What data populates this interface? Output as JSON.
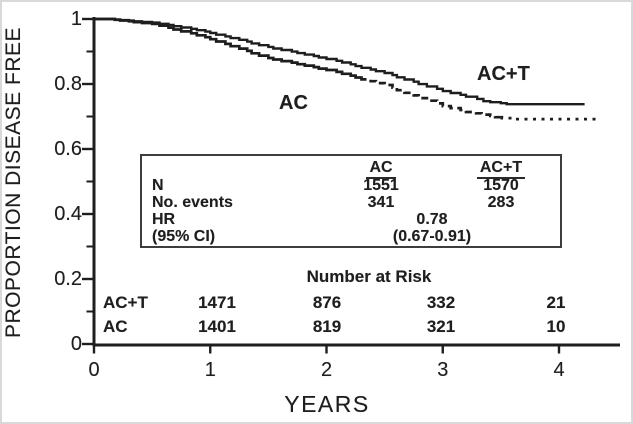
{
  "figure": {
    "background": "#ffffff",
    "ink": "#1e1e1e",
    "border_color": "#d9d9d9",
    "box_border_color": "#3d3d3d"
  },
  "chart_data": {
    "type": "line",
    "subtype": "kaplan-meier-step",
    "title": "",
    "xlabel": "YEARS",
    "ylabel": "PROPORTION DISEASE FREE",
    "xlim": [
      0,
      4.5
    ],
    "ylim": [
      0,
      1
    ],
    "grid": false,
    "legend_position": "curve-labels-inline",
    "x_ticks": [
      {
        "value": 0,
        "label": "0"
      },
      {
        "value": 1,
        "label": "1"
      },
      {
        "value": 2,
        "label": "2"
      },
      {
        "value": 3,
        "label": "3"
      },
      {
        "value": 4,
        "label": "4"
      }
    ],
    "y_ticks_major": [
      {
        "value": 1.0,
        "label": "1"
      },
      {
        "value": 0.8,
        "label": "0.8"
      },
      {
        "value": 0.6,
        "label": "0.6"
      },
      {
        "value": 0.4,
        "label": "0.4"
      },
      {
        "value": 0.2,
        "label": "0.2"
      },
      {
        "value": 0.0,
        "label": "0"
      }
    ],
    "y_ticks_minor": [
      0.9,
      0.7,
      0.5,
      0.3,
      0.1
    ],
    "series": [
      {
        "name": "AC",
        "line_style": "solid then dashed then dotted",
        "points": [
          [
            0,
            1
          ],
          [
            0.1,
            1
          ],
          [
            0.3,
            0.993
          ],
          [
            0.5,
            0.985
          ],
          [
            0.75,
            0.962
          ],
          [
            1,
            0.938
          ],
          [
            1.25,
            0.909
          ],
          [
            1.5,
            0.88
          ],
          [
            1.75,
            0.861
          ],
          [
            2,
            0.843
          ],
          [
            2.25,
            0.82
          ],
          [
            2.5,
            0.797
          ],
          [
            2.75,
            0.765
          ],
          [
            3,
            0.732
          ],
          [
            3.2,
            0.714
          ],
          [
            3.45,
            0.698
          ],
          [
            3.6,
            0.692
          ],
          [
            4.35,
            0.692
          ]
        ],
        "style_segments": [
          {
            "end_year": 2.3,
            "dash": ""
          },
          {
            "end_year": 3.5,
            "dash": "7 4.5"
          },
          {
            "end_year": 4.35,
            "dash": "3 5.5"
          }
        ],
        "stroke_width": 2.7
      },
      {
        "name": "AC+T",
        "line_style": "solid",
        "points": [
          [
            0,
            1
          ],
          [
            0.1,
            1
          ],
          [
            0.3,
            0.995
          ],
          [
            0.5,
            0.989
          ],
          [
            0.75,
            0.974
          ],
          [
            1,
            0.957
          ],
          [
            1.25,
            0.936
          ],
          [
            1.5,
            0.914
          ],
          [
            1.75,
            0.895
          ],
          [
            2,
            0.877
          ],
          [
            2.25,
            0.855
          ],
          [
            2.5,
            0.834
          ],
          [
            2.75,
            0.807
          ],
          [
            3,
            0.778
          ],
          [
            3.2,
            0.761
          ],
          [
            3.35,
            0.747
          ],
          [
            3.55,
            0.738
          ],
          [
            4.22,
            0.738
          ]
        ],
        "style_segments": [
          {
            "end_year": 4.22,
            "dash": ""
          }
        ],
        "stroke_width": 2.4
      }
    ],
    "curve_labels": {
      "ac": "AC",
      "act": "AC+T"
    }
  },
  "stats_box": {
    "col_headers": {
      "ac": "AC",
      "act": "AC+T"
    },
    "row_n": {
      "label": "N",
      "ac": "1551",
      "act": "1570"
    },
    "row_events": {
      "label": "No. events",
      "ac": "341",
      "act": "283"
    },
    "row_hr": {
      "label": "HR",
      "combined": "0.78"
    },
    "row_ci": {
      "label": "(95% CI)",
      "combined": "(0.67-0.91)"
    }
  },
  "risk_table": {
    "title": "Number at Risk",
    "rows": [
      {
        "label": "AC+T",
        "counts": [
          "1471",
          "876",
          "332",
          "21"
        ]
      },
      {
        "label": "AC",
        "counts": [
          "1401",
          "819",
          "321",
          "10"
        ]
      }
    ]
  }
}
